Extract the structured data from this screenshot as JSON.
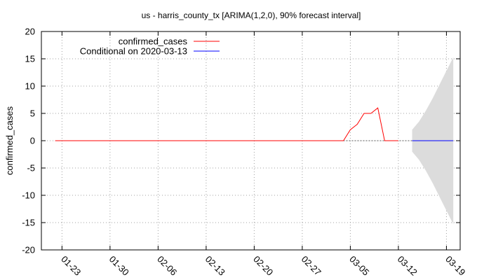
{
  "chart_data": {
    "type": "line",
    "title": "us - harris_county_tx [ARIMA(1,2,0), 90% forecast interval]",
    "ylabel": "confirmed_cases",
    "xlabel": "",
    "ylim": [
      -20,
      20
    ],
    "yticks": [
      -20,
      -15,
      -10,
      -5,
      0,
      5,
      10,
      15,
      20
    ],
    "xlim": [
      "2020-01-20",
      "2020-03-21"
    ],
    "xticks": [
      {
        "label": "01-23",
        "date": "2020-01-23"
      },
      {
        "label": "01-30",
        "date": "2020-01-30"
      },
      {
        "label": "02-06",
        "date": "2020-02-06"
      },
      {
        "label": "02-13",
        "date": "2020-02-13"
      },
      {
        "label": "02-20",
        "date": "2020-02-20"
      },
      {
        "label": "02-27",
        "date": "2020-02-27"
      },
      {
        "label": "03-05",
        "date": "2020-03-05"
      },
      {
        "label": "03-12",
        "date": "2020-03-12"
      },
      {
        "label": "03-19",
        "date": "2020-03-19"
      }
    ],
    "grid": true,
    "legend_position": "top-left",
    "series": [
      {
        "name": "confirmed_cases",
        "color": "#ff0000",
        "dates": [
          "2020-01-22",
          "2020-01-23",
          "2020-01-24",
          "2020-01-25",
          "2020-01-26",
          "2020-01-27",
          "2020-01-28",
          "2020-01-29",
          "2020-01-30",
          "2020-01-31",
          "2020-02-01",
          "2020-02-02",
          "2020-02-03",
          "2020-02-04",
          "2020-02-05",
          "2020-02-06",
          "2020-02-07",
          "2020-02-08",
          "2020-02-09",
          "2020-02-10",
          "2020-02-11",
          "2020-02-12",
          "2020-02-13",
          "2020-02-14",
          "2020-02-15",
          "2020-02-16",
          "2020-02-17",
          "2020-02-18",
          "2020-02-19",
          "2020-02-20",
          "2020-02-21",
          "2020-02-22",
          "2020-02-23",
          "2020-02-24",
          "2020-02-25",
          "2020-02-26",
          "2020-02-27",
          "2020-02-28",
          "2020-02-29",
          "2020-03-01",
          "2020-03-02",
          "2020-03-03",
          "2020-03-04",
          "2020-03-05",
          "2020-03-06",
          "2020-03-07",
          "2020-03-08",
          "2020-03-09",
          "2020-03-10",
          "2020-03-11",
          "2020-03-12"
        ],
        "values": [
          0,
          0,
          0,
          0,
          0,
          0,
          0,
          0,
          0,
          0,
          0,
          0,
          0,
          0,
          0,
          0,
          0,
          0,
          0,
          0,
          0,
          0,
          0,
          0,
          0,
          0,
          0,
          0,
          0,
          0,
          0,
          0,
          0,
          0,
          0,
          0,
          0,
          0,
          0,
          0,
          0,
          0,
          0,
          2,
          3,
          5,
          5,
          6,
          0,
          0,
          0
        ]
      },
      {
        "name": "Conditional on 2020-03-13",
        "color": "#0000ff",
        "dates": [
          "2020-03-14",
          "2020-03-15",
          "2020-03-16",
          "2020-03-17",
          "2020-03-18",
          "2020-03-19",
          "2020-03-20"
        ],
        "values": [
          0,
          0,
          0,
          0,
          0,
          0,
          0
        ]
      }
    ],
    "forecast_interval": {
      "color": "#dcdcdc",
      "dates": [
        "2020-03-14",
        "2020-03-15",
        "2020-03-16",
        "2020-03-17",
        "2020-03-18",
        "2020-03-19",
        "2020-03-20"
      ],
      "lower": [
        -2,
        -3.5,
        -5.5,
        -7.8,
        -10.3,
        -12.8,
        -15.3
      ],
      "upper": [
        2,
        3.5,
        5.5,
        7.8,
        10.3,
        12.8,
        15.3
      ]
    },
    "zero_reference": {
      "from": "2020-03-04",
      "to": "2020-03-20",
      "value": 0
    }
  }
}
